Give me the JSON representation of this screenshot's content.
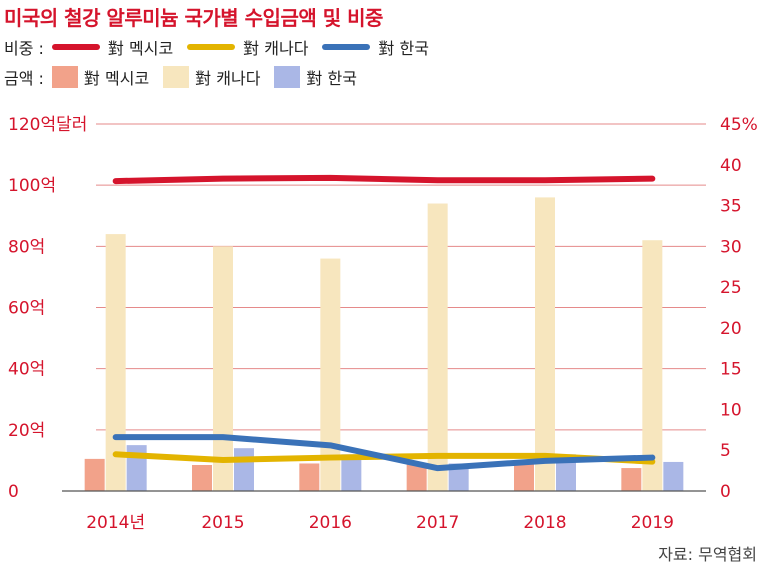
{
  "title": "미국의 철강 알루미늄 국가별 수입금액 및 비중",
  "legend": {
    "share_label": "비중 :",
    "amount_label": "금액 :",
    "series_names": [
      "對 멕시코",
      "對 캐나다",
      "對 한국"
    ]
  },
  "source": "자료: 무역협회",
  "colors": {
    "title": "#d5142c",
    "axis_text": "#d5142c",
    "grid": "#e58a8a",
    "baseline": "#555555",
    "mexico_line": "#d5142c",
    "canada_line": "#e3b400",
    "korea_line": "#3a72b8",
    "mexico_bar": "#f2a28a",
    "canada_bar": "#f7e6be",
    "korea_bar": "#aab7e6"
  },
  "chart_data": {
    "type": "bar",
    "categories": [
      "2014년",
      "2015",
      "2016",
      "2017",
      "2018",
      "2019"
    ],
    "left_axis": {
      "ticks": [
        "0",
        "20억",
        "40억",
        "60억",
        "80억",
        "100억",
        "120억달러"
      ],
      "values": [
        0,
        20,
        40,
        60,
        80,
        100,
        120
      ],
      "ylim": [
        0,
        120
      ]
    },
    "right_axis": {
      "ticks": [
        "0",
        "5",
        "10",
        "15",
        "20",
        "25",
        "30",
        "35",
        "40",
        "45%"
      ],
      "values": [
        0,
        5,
        10,
        15,
        20,
        25,
        30,
        35,
        40,
        45
      ],
      "ylim": [
        0,
        45
      ]
    },
    "bars": [
      {
        "name": "對 멕시코",
        "values": [
          10.5,
          8.5,
          9,
          9,
          9.5,
          7.5
        ]
      },
      {
        "name": "對 캐나다",
        "values": [
          84,
          80,
          76,
          94,
          96,
          82
        ]
      },
      {
        "name": "對 한국",
        "values": [
          15,
          14,
          12,
          9,
          12,
          9.5
        ]
      }
    ],
    "lines": [
      {
        "name": "對 멕시코",
        "values": [
          38,
          38.3,
          38.4,
          38.1,
          38.1,
          38.3
        ]
      },
      {
        "name": "對 캐나다",
        "values": [
          4.5,
          3.8,
          4.1,
          4.3,
          4.3,
          3.6
        ]
      },
      {
        "name": "對 한국",
        "values": [
          6.6,
          6.6,
          5.6,
          2.8,
          3.7,
          4.1
        ]
      }
    ]
  }
}
